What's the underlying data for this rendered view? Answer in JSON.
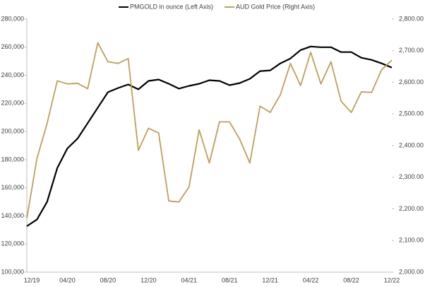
{
  "chart_data": {
    "type": "line",
    "categories": [
      "12/19",
      null,
      null,
      null,
      "04/20",
      null,
      null,
      null,
      "08/20",
      null,
      null,
      null,
      "12/20",
      null,
      null,
      null,
      "04/21",
      null,
      null,
      null,
      "08/21",
      null,
      null,
      null,
      "12/21",
      null,
      null,
      null,
      "04/22",
      null,
      null,
      null,
      "08/22",
      null,
      null,
      null,
      "12/22"
    ],
    "series": [
      {
        "name": "PMGOLD in ounce (Left Axis)",
        "color": "#000000",
        "axis": "y",
        "values": [
          132700,
          137500,
          150000,
          174000,
          188000,
          195000,
          206000,
          217000,
          228000,
          231000,
          233500,
          230000,
          236000,
          237000,
          234000,
          230500,
          232500,
          234000,
          236500,
          236000,
          233000,
          234500,
          237500,
          243000,
          243500,
          248500,
          252000,
          258000,
          260500,
          260000,
          260000,
          256500,
          256500,
          252500,
          251000,
          248500,
          245500
        ]
      },
      {
        "name": "AUD Gold Price (Right Axis)",
        "color": "#bf9f5a",
        "axis": "y2",
        "values": [
          2170,
          2360,
          2470,
          2605,
          2595,
          2597,
          2580,
          2725,
          2665,
          2660,
          2675,
          2385,
          2455,
          2440,
          2225,
          2222,
          2270,
          2450,
          2345,
          2475,
          2475,
          2420,
          2345,
          2525,
          2505,
          2560,
          2660,
          2590,
          2695,
          2595,
          2665,
          2540,
          2505,
          2570,
          2568,
          2640,
          2670
        ]
      }
    ],
    "ylim": [
      100000,
      280000
    ],
    "yticks": [
      {
        "value": 100000,
        "label": "100,000"
      },
      {
        "value": 120000,
        "label": "120,000"
      },
      {
        "value": 140000,
        "label": "140,000"
      },
      {
        "value": 160000,
        "label": "160,000"
      },
      {
        "value": 180000,
        "label": "180,000"
      },
      {
        "value": 200000,
        "label": "200,000"
      },
      {
        "value": 220000,
        "label": "220,000"
      },
      {
        "value": 240000,
        "label": "240,000"
      },
      {
        "value": 260000,
        "label": "260,000"
      },
      {
        "value": 280000,
        "label": "280,000"
      }
    ],
    "y2lim": [
      2000,
      2800
    ],
    "y2ticks": [
      {
        "value": 2000,
        "label": "2,000.00"
      },
      {
        "value": 2100,
        "label": "2,100.00"
      },
      {
        "value": 2200,
        "label": "2,200.00"
      },
      {
        "value": 2300,
        "label": "2,300.00"
      },
      {
        "value": 2400,
        "label": "2,400.00"
      },
      {
        "value": 2500,
        "label": "2,500.00"
      },
      {
        "value": 2600,
        "label": "2,600.00"
      },
      {
        "value": 2700,
        "label": "2,700.00"
      },
      {
        "value": 2800,
        "label": "2,800.00"
      }
    ],
    "legend": "top"
  }
}
